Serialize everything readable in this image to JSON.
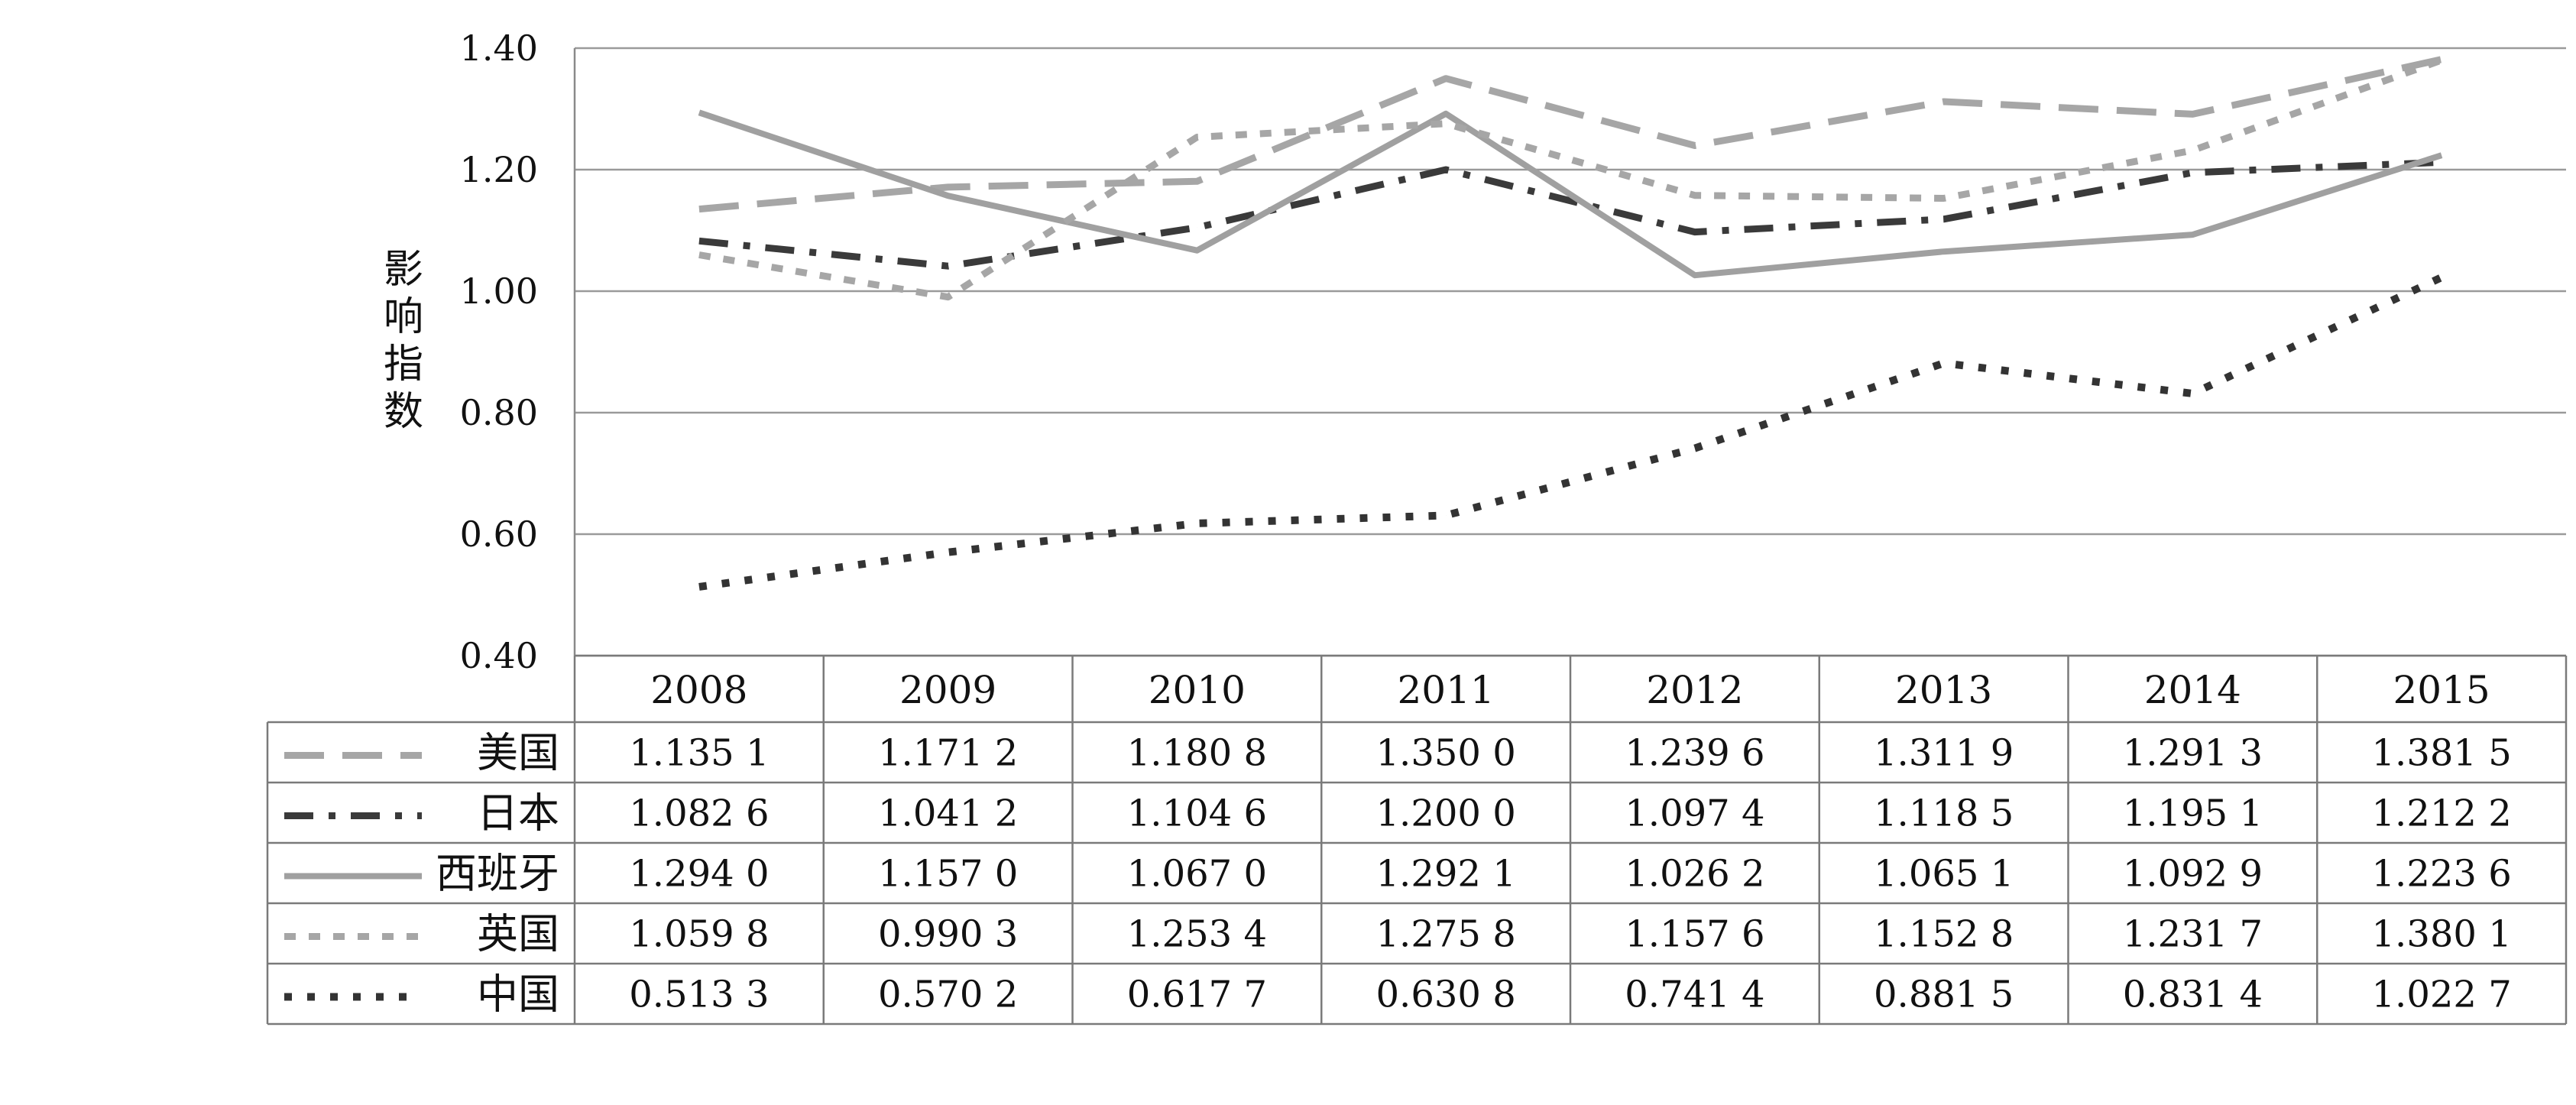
{
  "chart_data": {
    "type": "line",
    "ylabel": "影响指数",
    "xlabel": "",
    "title": "",
    "ylim": [
      0.4,
      1.4
    ],
    "y_ticks": [
      "0.40",
      "0.60",
      "0.80",
      "1.00",
      "1.20",
      "1.40"
    ],
    "grid": true,
    "legend": "data-table-left",
    "categories": [
      "2008",
      "2009",
      "2010",
      "2011",
      "2012",
      "2013",
      "2014",
      "2015"
    ],
    "series": [
      {
        "name": "美国",
        "color": "#a6a6a6",
        "style": "long-dash",
        "values": [
          1.1351,
          1.1712,
          1.1808,
          1.35,
          1.2396,
          1.3119,
          1.2913,
          1.3815
        ],
        "labels": [
          "1.135 1",
          "1.171 2",
          "1.180 8",
          "1.350 0",
          "1.239 6",
          "1.311 9",
          "1.291 3",
          "1.381 5"
        ]
      },
      {
        "name": "日本",
        "color": "#3a3a3a",
        "style": "dash-dot",
        "values": [
          1.0826,
          1.0412,
          1.1046,
          1.2,
          1.0974,
          1.1185,
          1.1951,
          1.2122
        ],
        "labels": [
          "1.082 6",
          "1.041 2",
          "1.104 6",
          "1.200 0",
          "1.097 4",
          "1.118 5",
          "1.195 1",
          "1.212 2"
        ]
      },
      {
        "name": "西班牙",
        "color": "#a0a0a0",
        "style": "solid",
        "values": [
          1.294,
          1.157,
          1.067,
          1.2921,
          1.0262,
          1.0651,
          1.0929,
          1.2236
        ],
        "labels": [
          "1.294 0",
          "1.157 0",
          "1.067 0",
          "1.292 1",
          "1.026 2",
          "1.065 1",
          "1.092 9",
          "1.223 6"
        ]
      },
      {
        "name": "英国",
        "color": "#a6a6a6",
        "style": "dotted",
        "values": [
          1.0598,
          0.9903,
          1.2534,
          1.2758,
          1.1576,
          1.1528,
          1.2317,
          1.3801
        ],
        "labels": [
          "1.059 8",
          "0.990 3",
          "1.253 4",
          "1.275 8",
          "1.157 6",
          "1.152 8",
          "1.231 7",
          "1.380 1"
        ]
      },
      {
        "name": "中国",
        "color": "#333333",
        "style": "dotted-dark",
        "values": [
          0.5133,
          0.5702,
          0.6177,
          0.6308,
          0.7414,
          0.8815,
          0.8314,
          1.0227
        ],
        "labels": [
          "0.513 3",
          "0.570 2",
          "0.617 7",
          "0.630 8",
          "0.741 4",
          "0.881 5",
          "0.831 4",
          "1.022 7"
        ]
      }
    ]
  }
}
